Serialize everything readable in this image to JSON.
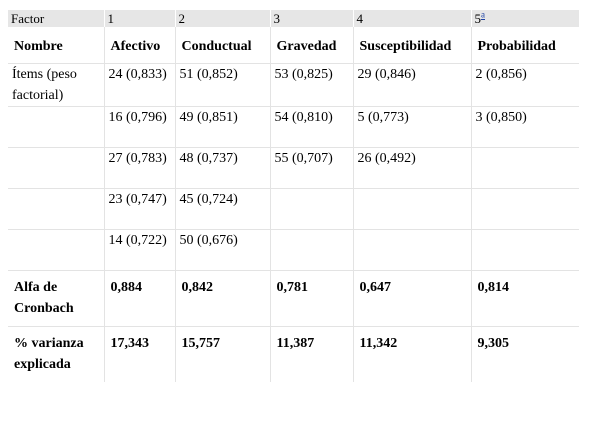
{
  "header": {
    "factor_label": "Factor",
    "factors": [
      "1",
      "2",
      "3",
      "4",
      "5"
    ],
    "footnote_mark": "a"
  },
  "names": {
    "label": "Nombre",
    "columns": [
      "Afectivo",
      "Conductual",
      "Gravedad",
      "Susceptibilidad",
      "Probabilidad"
    ]
  },
  "items": {
    "label": "Ítems (peso factorial)",
    "rows": [
      [
        "24 (0,833)",
        "51 (0,852)",
        "53 (0,825)",
        "29 (0,846)",
        "2 (0,856)"
      ],
      [
        "16 (0,796)",
        "49 (0,851)",
        "54 (0,810)",
        "5 (0,773)",
        "3 (0,850)"
      ],
      [
        "27 (0,783)",
        "48 (0,737)",
        "55 (0,707)",
        "26 (0,492)",
        ""
      ],
      [
        "23 (0,747)",
        "45 (0,724)",
        "",
        "",
        ""
      ],
      [
        "14 (0,722)",
        "50 (0,676)",
        "",
        "",
        ""
      ]
    ]
  },
  "alpha": {
    "label": "Alfa de Cronbach",
    "values": [
      "0,884",
      "0,842",
      "0,781",
      "0,647",
      "0,814"
    ]
  },
  "variance": {
    "label": "% varianza explicada",
    "values": [
      "17,343",
      "15,757",
      "11,387",
      "11,342",
      "9,305"
    ]
  }
}
